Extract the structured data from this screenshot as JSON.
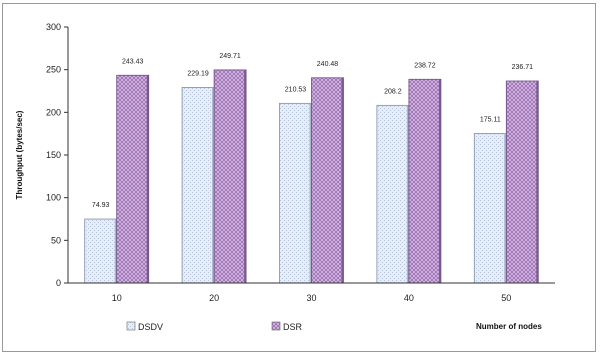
{
  "chart_data": {
    "type": "bar",
    "title": "",
    "xlabel": "Number of nodes",
    "ylabel": "Throughput (bytes/sec)",
    "categories": [
      "10",
      "20",
      "30",
      "40",
      "50"
    ],
    "ylim": [
      0,
      300
    ],
    "yticks": [
      "0",
      "50",
      "100",
      "150",
      "200",
      "250",
      "300"
    ],
    "grid": false,
    "legend_position": "bottom-left",
    "series": [
      {
        "name": "DSDV",
        "color": "#e3ebf6",
        "pattern": "light-dots",
        "values": [
          74.93,
          229.19,
          210.53,
          208.2,
          175.11
        ],
        "labels": [
          "74.93",
          "229.19",
          "210.53",
          "208.2",
          "175.11"
        ]
      },
      {
        "name": "DSR",
        "color": "#c8a8d8",
        "pattern": "crosshatch",
        "values": [
          243.43,
          249.71,
          240.48,
          238.72,
          236.71
        ],
        "labels": [
          "243.43",
          "249.71",
          "240.48",
          "238.72",
          "236.71"
        ]
      }
    ]
  }
}
